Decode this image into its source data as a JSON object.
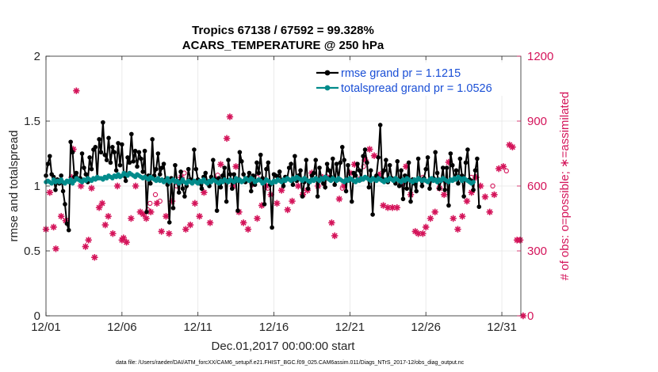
{
  "chart_data": {
    "type": "line",
    "title": "Tropics 67138 / 67592 = 99.328%",
    "subtitle": "ACARS_TEMPERATURE @ 250 hPa",
    "xlabel": "Dec.01,2017 00:00:00 start",
    "ylabel": "rmse and totalspread",
    "y2label": "# of obs: o=possible; ∗=assimilated",
    "footnote": "data file: /Users/raeder/DAI/ATM_forcXX/CAM6_setup/f.e21.FHIST_BGC.f09_025.CAM6assim.011/Diags_NTrS_2017-12/obs_diag_output.nc",
    "xlim": [
      0,
      31.25
    ],
    "ylim": [
      0,
      2
    ],
    "y2lim": [
      0,
      1200
    ],
    "x_ticks": [
      0,
      5,
      10,
      15,
      20,
      25,
      30
    ],
    "x_tick_labels": [
      "12/01",
      "12/06",
      "12/11",
      "12/16",
      "12/21",
      "12/26",
      "12/31"
    ],
    "y_ticks": [
      0,
      0.5,
      1,
      1.5,
      2
    ],
    "y_tick_labels": [
      "0",
      "0.5",
      "1",
      "1.5",
      "2"
    ],
    "y2_ticks": [
      0,
      300,
      600,
      900,
      1200
    ],
    "y2_tick_labels": [
      "0",
      "300",
      "600",
      "900",
      "1200"
    ],
    "grid": true,
    "legend_position": "top-right",
    "series": [
      {
        "name": "rmse grand pr = 1.1215",
        "color": "#000000",
        "axis": "left",
        "values": [
          1.08,
          1.17,
          1.23,
          1.09,
          1.07,
          0.97,
          1.05,
          1.02,
          1.08,
          0.96,
          0.86,
          0.71,
          0.66,
          1.34,
          1.26,
          1.07,
          1.1,
          1.05,
          1.06,
          1.25,
          1.14,
          1.09,
          1.03,
          1.22,
          1.13,
          1.28,
          1.3,
          1.06,
          1.36,
          1.26,
          1.49,
          1.24,
          1.2,
          1.37,
          1.18,
          1.3,
          1.26,
          1.12,
          1.33,
          1.16,
          1.32,
          1.08,
          1.04,
          1.22,
          1.18,
          1.4,
          1.19,
          1.27,
          1.15,
          1.26,
          1.21,
          1.11,
          1.27,
          0.8,
          1.08,
          1.02,
          1.36,
          1.08,
          1.13,
          1.25,
          1.09,
          1.14,
          1.17,
          1.05,
          1.01,
          0.72,
          1.06,
          0.83,
          1.16,
          1.04,
          0.95,
          1.11,
          0.98,
          0.92,
          1.0,
          1.13,
          1.05,
          1.04,
          1.28,
          1.13,
          1.05,
          1.02,
          0.98,
          1.07,
          1.1,
          1.02,
          1.0,
          1.07,
          1.2,
          1.05,
          0.81,
          1.06,
          0.99,
          1.08,
          1.14,
          0.88,
          1.2,
          1.09,
          0.98,
          1.09,
          1.04,
          0.81,
          1.26,
          1.19,
          1.09,
          1.03,
          1.06,
          1.1,
          0.96,
          1.08,
          1.01,
          1.18,
          1.1,
          1.24,
          1.06,
          0.86,
          1.13,
          1.18,
          1.01,
          0.68,
          1.09,
          1.08,
          1.07,
          1.11,
          1.04,
          1.0,
          1.07,
          1.06,
          1.14,
          1.17,
          1.01,
          1.23,
          1.04,
          1.08,
          1.12,
          0.92,
          1.03,
          1.2,
          0.98,
          1.04,
          1.08,
          1.1,
          1.2,
          0.92,
          1.14,
          1.06,
          1.02,
          0.99,
          1.17,
          1.12,
          1.07,
          1.21,
          1.01,
          1.17,
          1.05,
          1.18,
          1.3,
          1.2,
          0.96,
          1.16,
          1.06,
          0.88,
          1.1,
          1.08,
          1.17,
          1.12,
          1.05,
          1.23,
          1.28,
          1.18,
          0.99,
          1.12,
          0.78,
          1.06,
          1.08,
          1.22,
          1.47,
          1.06,
          1.12,
          1.2,
          1.03,
          1.16,
          1.06,
          1.04,
          1.02,
          1.19,
          1.0,
          1.12,
          0.9,
          1.08,
          0.98,
          1.18,
          0.88,
          1.05,
          1.02,
          0.96,
          1.21,
          1.05,
          1.0,
          1.06,
          1.13,
          1.22,
          0.98,
          1.05,
          1.06,
          1.26,
          1.1,
          0.98,
          1.04,
          1.14,
          0.97,
          1.14,
          0.85,
          1.25,
          1.16,
          1.05,
          1.12,
          1.02,
          1.21,
          1.08,
          0.92,
          1.18,
          1.28,
          1.05,
          1.04,
          0.97,
          1.12,
          1.21,
          0.84
        ],
        "start_day": 0,
        "step_days": 0.125
      },
      {
        "name": "totalspread grand pr = 1.0526",
        "color": "#008b8b",
        "axis": "left",
        "values": [
          1.03,
          1.04,
          1.03,
          1.02,
          1.05,
          1.03,
          1.04,
          1.03,
          1.05,
          1.03,
          1.02,
          1.04,
          1.03,
          1.05,
          1.02,
          1.04,
          1.06,
          1.05,
          1.04,
          1.03,
          1.05,
          1.04,
          1.06,
          1.05,
          1.04,
          1.06,
          1.05,
          1.07,
          1.06,
          1.06,
          1.05,
          1.07,
          1.06,
          1.08,
          1.07,
          1.06,
          1.08,
          1.07,
          1.09,
          1.07,
          1.08,
          1.1,
          1.09,
          1.08,
          1.1,
          1.09,
          1.08,
          1.07,
          1.09,
          1.08,
          1.07,
          1.06,
          1.07,
          1.06,
          1.05,
          1.07,
          1.06,
          1.05,
          1.04,
          1.06,
          1.04,
          1.05,
          1.03,
          1.04,
          1.06,
          1.03,
          1.04,
          1.05,
          1.03,
          1.04,
          1.02,
          1.03,
          1.05,
          1.03,
          1.02,
          1.04,
          1.03,
          1.02,
          1.04,
          1.03,
          1.02,
          1.04,
          1.03,
          1.05,
          1.03,
          1.02,
          1.04,
          1.03,
          1.05,
          1.04,
          1.03,
          1.02,
          1.04,
          1.03,
          1.05,
          1.04,
          1.03,
          1.05,
          1.04,
          1.03,
          1.06,
          1.04,
          1.05,
          1.03,
          1.04,
          1.06,
          1.05,
          1.04,
          1.06,
          1.05,
          1.03,
          1.04,
          1.05,
          1.04,
          1.02,
          1.03,
          1.05,
          1.04,
          1.03,
          1.02,
          1.04,
          1.03,
          1.05,
          1.04,
          1.03,
          1.05,
          1.04,
          1.06,
          1.05,
          1.04,
          1.06,
          1.05,
          1.07,
          1.06,
          1.05,
          1.04,
          1.06,
          1.05,
          1.04,
          1.03,
          1.05,
          1.04,
          1.06,
          1.05,
          1.04,
          1.06,
          1.05,
          1.07,
          1.06,
          1.05,
          1.04,
          1.06,
          1.05,
          1.04,
          1.06,
          1.05,
          1.04,
          1.03,
          1.05,
          1.04,
          1.06,
          1.05,
          1.04,
          1.03,
          1.05,
          1.04,
          1.06,
          1.05,
          1.07,
          1.06,
          1.05,
          1.04,
          1.06,
          1.05,
          1.04,
          1.06,
          1.05,
          1.04,
          1.03,
          1.05,
          1.04,
          1.06,
          1.05,
          1.04,
          1.06,
          1.05,
          1.04,
          1.03,
          1.05,
          1.04,
          1.06,
          1.05,
          1.04,
          1.03,
          1.05,
          1.04,
          1.06,
          1.05,
          1.04,
          1.05,
          1.04,
          1.03,
          1.05,
          1.06,
          1.04,
          1.05,
          1.03,
          1.05,
          1.04,
          1.06,
          1.05,
          1.04,
          1.03,
          1.05,
          1.04,
          1.06,
          1.05,
          1.07,
          1.06,
          1.04,
          1.06,
          1.05,
          1.04,
          1.03,
          1.02,
          1.03
        ],
        "start_day": 0,
        "step_days": 0.125
      },
      {
        "name": "obs possible",
        "color": "#d4145a",
        "axis": "right",
        "marker": "o",
        "points": [
          [
            6.7,
            490
          ],
          [
            6.85,
            520
          ],
          [
            7.2,
            560
          ],
          [
            7.5,
            530
          ],
          [
            8.6,
            600
          ],
          [
            9.1,
            660
          ],
          [
            10.1,
            620
          ],
          [
            11.3,
            650
          ],
          [
            13.9,
            640
          ],
          [
            14.6,
            590
          ],
          [
            15.5,
            620
          ],
          [
            16.9,
            560
          ],
          [
            18.3,
            610
          ],
          [
            19.5,
            590
          ],
          [
            20.9,
            690
          ],
          [
            22.1,
            660
          ],
          [
            23.4,
            630
          ],
          [
            24.8,
            640
          ],
          [
            26.3,
            620
          ],
          [
            28.0,
            640
          ],
          [
            29.4,
            600
          ],
          [
            30.3,
            670
          ]
        ]
      },
      {
        "name": "obs assimilated",
        "color": "#d4145a",
        "axis": "right",
        "marker": "*",
        "points": [
          [
            0.0,
            400
          ],
          [
            0.25,
            570
          ],
          [
            0.5,
            410
          ],
          [
            0.65,
            310
          ],
          [
            1.0,
            460
          ],
          [
            1.3,
            440
          ],
          [
            1.7,
            640
          ],
          [
            1.8,
            770
          ],
          [
            2.0,
            1040
          ],
          [
            2.3,
            600
          ],
          [
            2.6,
            320
          ],
          [
            2.8,
            350
          ],
          [
            3.0,
            590
          ],
          [
            3.2,
            270
          ],
          [
            3.5,
            500
          ],
          [
            3.7,
            520
          ],
          [
            3.9,
            420
          ],
          [
            4.1,
            460
          ],
          [
            4.4,
            380
          ],
          [
            4.7,
            600
          ],
          [
            5.0,
            350
          ],
          [
            5.1,
            360
          ],
          [
            5.3,
            340
          ],
          [
            5.6,
            450
          ],
          [
            5.9,
            600
          ],
          [
            6.2,
            480
          ],
          [
            6.4,
            470
          ],
          [
            6.6,
            450
          ],
          [
            6.9,
            480
          ],
          [
            7.3,
            520
          ],
          [
            7.6,
            390
          ],
          [
            7.9,
            460
          ],
          [
            8.1,
            380
          ],
          [
            8.3,
            530
          ],
          [
            8.6,
            620
          ],
          [
            8.9,
            640
          ],
          [
            9.2,
            400
          ],
          [
            9.5,
            420
          ],
          [
            9.8,
            520
          ],
          [
            10.1,
            460
          ],
          [
            10.4,
            570
          ],
          [
            10.8,
            430
          ],
          [
            11.2,
            630
          ],
          [
            11.5,
            700
          ],
          [
            11.9,
            820
          ],
          [
            12.1,
            920
          ],
          [
            12.3,
            600
          ],
          [
            12.5,
            690
          ],
          [
            12.7,
            480
          ],
          [
            13.0,
            430
          ],
          [
            13.3,
            400
          ],
          [
            13.6,
            610
          ],
          [
            13.9,
            450
          ],
          [
            14.2,
            510
          ],
          [
            14.5,
            600
          ],
          [
            14.8,
            560
          ],
          [
            15.2,
            520
          ],
          [
            15.5,
            580
          ],
          [
            15.9,
            490
          ],
          [
            16.2,
            530
          ],
          [
            16.6,
            600
          ],
          [
            16.9,
            560
          ],
          [
            17.2,
            580
          ],
          [
            17.5,
            660
          ],
          [
            17.9,
            600
          ],
          [
            18.2,
            640
          ],
          [
            18.5,
            640
          ],
          [
            18.8,
            430
          ],
          [
            19.0,
            370
          ],
          [
            19.3,
            540
          ],
          [
            19.6,
            600
          ],
          [
            20.0,
            660
          ],
          [
            20.3,
            700
          ],
          [
            20.6,
            630
          ],
          [
            21.0,
            720
          ],
          [
            21.3,
            770
          ],
          [
            21.6,
            740
          ],
          [
            21.9,
            650
          ],
          [
            22.2,
            510
          ],
          [
            22.5,
            500
          ],
          [
            22.8,
            500
          ],
          [
            23.1,
            500
          ],
          [
            23.4,
            610
          ],
          [
            23.7,
            690
          ],
          [
            24.0,
            560
          ],
          [
            24.3,
            390
          ],
          [
            24.5,
            380
          ],
          [
            24.8,
            380
          ],
          [
            25.0,
            410
          ],
          [
            25.3,
            450
          ],
          [
            25.6,
            480
          ],
          [
            25.9,
            590
          ],
          [
            26.2,
            560
          ],
          [
            26.5,
            710
          ],
          [
            26.8,
            450
          ],
          [
            27.1,
            400
          ],
          [
            27.4,
            460
          ],
          [
            27.7,
            530
          ],
          [
            28.0,
            570
          ],
          [
            28.3,
            640
          ],
          [
            28.6,
            600
          ],
          [
            28.9,
            550
          ],
          [
            29.2,
            480
          ],
          [
            29.5,
            560
          ],
          [
            29.8,
            680
          ],
          [
            30.1,
            690
          ],
          [
            30.5,
            790
          ],
          [
            30.7,
            780
          ],
          [
            31.0,
            350
          ],
          [
            31.2,
            350
          ],
          [
            31.4,
            0
          ]
        ]
      }
    ]
  }
}
